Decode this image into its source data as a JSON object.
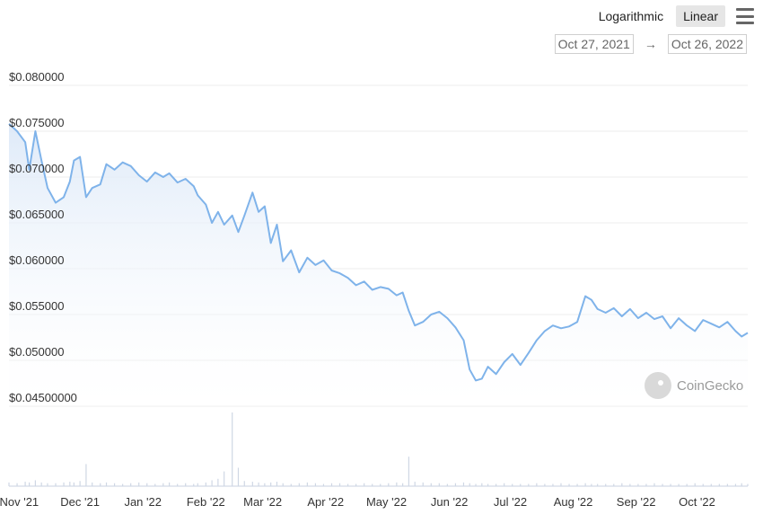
{
  "toolbar": {
    "logarithmic_label": "Logarithmic",
    "linear_label": "Linear",
    "active_scale": "linear"
  },
  "date_range": {
    "from": "Oct 27, 2021",
    "arrow": "→",
    "to": "Oct 26, 2022"
  },
  "watermark": {
    "text": "CoinGecko"
  },
  "colors": {
    "line": "#7fb3ea",
    "area_top": "#dde9f8",
    "volume": "#cfd7e4",
    "grid": "#ececec"
  },
  "chart_data": {
    "type": "line",
    "title": "",
    "xlabel": "",
    "ylabel": "",
    "ylim": [
      0.045,
      0.08
    ],
    "y_ticks": [
      "$0.080000",
      "$0.075000",
      "$0.070000",
      "$0.065000",
      "$0.060000",
      "$0.055000",
      "$0.050000",
      "$0.04500000"
    ],
    "x_ticks": [
      "Nov '21",
      "Dec '21",
      "Jan '22",
      "Feb '22",
      "Mar '22",
      "Apr '22",
      "May '22",
      "Jun '22",
      "Jul '22",
      "Aug '22",
      "Sep '22",
      "Oct '22"
    ],
    "x": [
      "2021-10-27",
      "2021-10-31",
      "2021-11-04",
      "2021-11-06",
      "2021-11-09",
      "2021-11-12",
      "2021-11-15",
      "2021-11-19",
      "2021-11-23",
      "2021-11-26",
      "2021-11-28",
      "2021-12-01",
      "2021-12-04",
      "2021-12-07",
      "2021-12-11",
      "2021-12-14",
      "2021-12-18",
      "2021-12-22",
      "2021-12-26",
      "2021-12-30",
      "2022-01-03",
      "2022-01-07",
      "2022-01-11",
      "2022-01-14",
      "2022-01-18",
      "2022-01-22",
      "2022-01-26",
      "2022-01-28",
      "2022-02-01",
      "2022-02-04",
      "2022-02-07",
      "2022-02-10",
      "2022-02-14",
      "2022-02-17",
      "2022-02-20",
      "2022-02-24",
      "2022-02-27",
      "2022-03-02",
      "2022-03-05",
      "2022-03-08",
      "2022-03-11",
      "2022-03-15",
      "2022-03-19",
      "2022-03-23",
      "2022-03-27",
      "2022-03-31",
      "2022-04-04",
      "2022-04-08",
      "2022-04-12",
      "2022-04-16",
      "2022-04-20",
      "2022-04-24",
      "2022-04-28",
      "2022-05-02",
      "2022-05-06",
      "2022-05-09",
      "2022-05-12",
      "2022-05-15",
      "2022-05-19",
      "2022-05-23",
      "2022-05-27",
      "2022-05-31",
      "2022-06-04",
      "2022-06-08",
      "2022-06-11",
      "2022-06-14",
      "2022-06-17",
      "2022-06-20",
      "2022-06-24",
      "2022-06-28",
      "2022-07-02",
      "2022-07-06",
      "2022-07-10",
      "2022-07-14",
      "2022-07-18",
      "2022-07-22",
      "2022-07-26",
      "2022-07-30",
      "2022-08-03",
      "2022-08-07",
      "2022-08-10",
      "2022-08-13",
      "2022-08-17",
      "2022-08-21",
      "2022-08-25",
      "2022-08-29",
      "2022-09-02",
      "2022-09-06",
      "2022-09-10",
      "2022-09-14",
      "2022-09-18",
      "2022-09-22",
      "2022-09-26",
      "2022-09-30",
      "2022-10-04",
      "2022-10-08",
      "2022-10-12",
      "2022-10-16",
      "2022-10-20",
      "2022-10-23",
      "2022-10-26"
    ],
    "series": [
      {
        "values": [
          0.0758,
          0.075,
          0.0738,
          0.0708,
          0.075,
          0.0718,
          0.0688,
          0.0672,
          0.0678,
          0.0695,
          0.0718,
          0.0722,
          0.0678,
          0.0688,
          0.0692,
          0.0714,
          0.0708,
          0.0716,
          0.0712,
          0.0702,
          0.0695,
          0.0705,
          0.07,
          0.0704,
          0.0694,
          0.0698,
          0.069,
          0.068,
          0.067,
          0.065,
          0.0662,
          0.0648,
          0.0658,
          0.064,
          0.0658,
          0.0683,
          0.0662,
          0.0668,
          0.0628,
          0.0648,
          0.0608,
          0.062,
          0.0596,
          0.0612,
          0.0604,
          0.0609,
          0.0598,
          0.0595,
          0.059,
          0.0582,
          0.0586,
          0.0577,
          0.058,
          0.0578,
          0.0571,
          0.0574,
          0.0554,
          0.0538,
          0.0542,
          0.055,
          0.0553,
          0.0546,
          0.0536,
          0.0522,
          0.049,
          0.0478,
          0.048,
          0.0493,
          0.0485,
          0.0498,
          0.0507,
          0.0495,
          0.0508,
          0.0522,
          0.0532,
          0.0538,
          0.0535,
          0.0537,
          0.0542,
          0.057,
          0.0566,
          0.0556,
          0.0552,
          0.0557,
          0.0548,
          0.0556,
          0.0546,
          0.0552,
          0.0545,
          0.0548,
          0.0535,
          0.0546,
          0.0538,
          0.0532,
          0.0544,
          0.054,
          0.0536,
          0.0542,
          0.0532,
          0.0526,
          0.053
        ]
      }
    ],
    "volume": [
      0.05,
      0.04,
      0.06,
      0.05,
      0.08,
      0.05,
      0.04,
      0.04,
      0.05,
      0.06,
      0.05,
      0.07,
      0.3,
      0.05,
      0.04,
      0.05,
      0.04,
      0.03,
      0.04,
      0.05,
      0.04,
      0.03,
      0.04,
      0.05,
      0.03,
      0.04,
      0.03,
      0.04,
      0.05,
      0.08,
      0.1,
      0.2,
      1.0,
      0.25,
      0.07,
      0.06,
      0.05,
      0.04,
      0.05,
      0.06,
      0.04,
      0.03,
      0.04,
      0.05,
      0.04,
      0.03,
      0.04,
      0.04,
      0.03,
      0.03,
      0.04,
      0.03,
      0.03,
      0.04,
      0.05,
      0.04,
      0.4,
      0.06,
      0.05,
      0.04,
      0.04,
      0.03,
      0.04,
      0.05,
      0.04,
      0.03,
      0.04,
      0.03,
      0.03,
      0.04,
      0.03,
      0.03,
      0.03,
      0.04,
      0.03,
      0.03,
      0.04,
      0.03,
      0.03,
      0.04,
      0.03,
      0.03,
      0.03,
      0.03,
      0.04,
      0.03,
      0.03,
      0.03,
      0.04,
      0.03,
      0.03,
      0.03,
      0.03,
      0.04,
      0.03,
      0.03,
      0.03,
      0.03,
      0.03,
      0.04,
      0.03
    ],
    "legend": "none",
    "grid": true
  }
}
